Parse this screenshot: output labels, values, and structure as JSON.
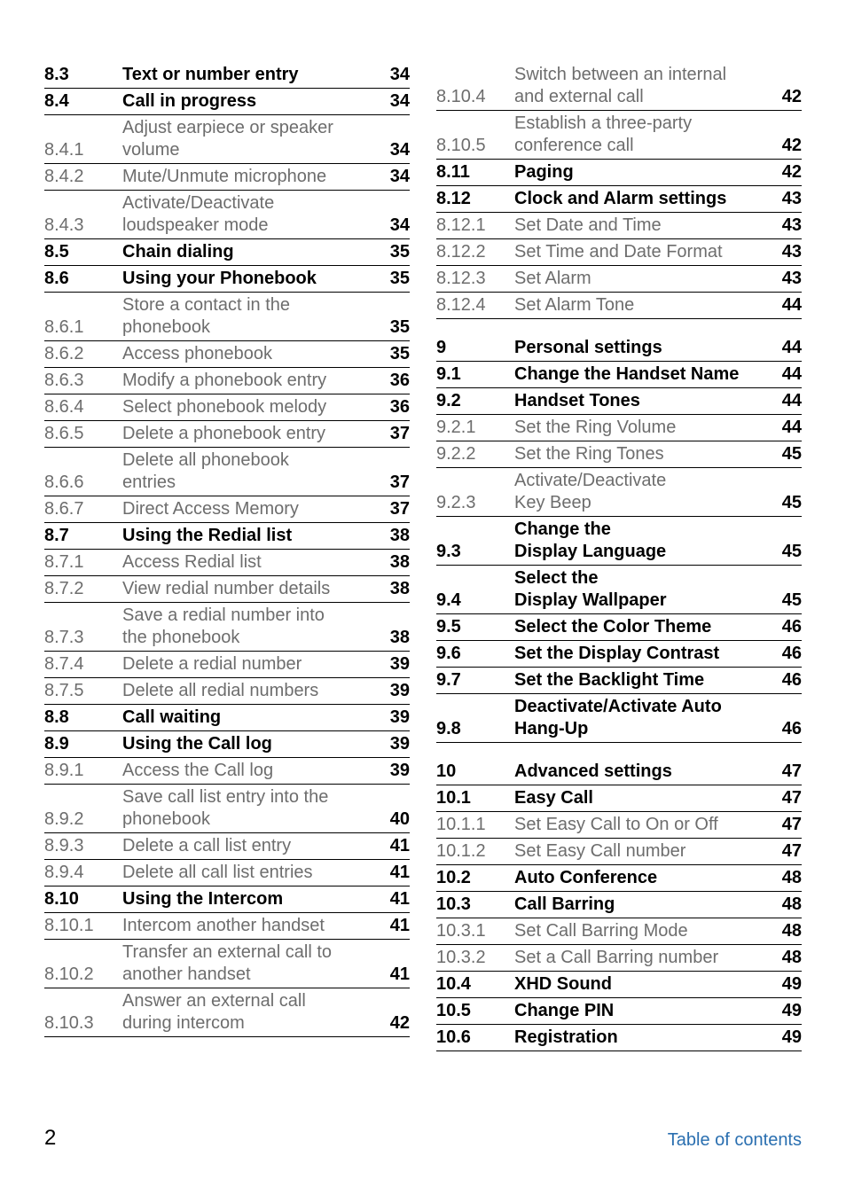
{
  "footer": {
    "page": "2",
    "label": "Table of contents"
  },
  "colors": {
    "link": "#2a6fb0",
    "muted": "#6d6d6d",
    "text": "#000000",
    "rule": "#000000"
  },
  "left": [
    {
      "num": "8.3",
      "title": "Text or number entry",
      "page": "34",
      "style": "semi"
    },
    {
      "num": "8.4",
      "title": "Call in progress",
      "page": "34",
      "style": "semi"
    },
    {
      "num": "8.4.1",
      "title": "Adjust earpiece or speaker volume",
      "page": "34",
      "style": "light",
      "multiline": true,
      "l1": "Adjust earpiece or speaker",
      "l2": "volume"
    },
    {
      "num": "8.4.2",
      "title": "Mute/Unmute microphone",
      "page": "34",
      "style": "light"
    },
    {
      "num": "8.4.3",
      "title": "Activate/Deactivate loudspeaker mode",
      "page": "34",
      "style": "light",
      "multiline": true,
      "l1": "Activate/Deactivate",
      "l2": "loudspeaker mode"
    },
    {
      "num": "8.5",
      "title": "Chain dialing",
      "page": "35",
      "style": "semi"
    },
    {
      "num": "8.6",
      "title": "Using your Phonebook",
      "page": "35",
      "style": "semi"
    },
    {
      "num": "8.6.1",
      "title": "Store a contact in the phonebook",
      "page": "35",
      "style": "light",
      "multiline": true,
      "l1": "Store a contact in the",
      "l2": "phonebook"
    },
    {
      "num": "8.6.2",
      "title": "Access phonebook",
      "page": "35",
      "style": "light"
    },
    {
      "num": "8.6.3",
      "title": "Modify a phonebook entry",
      "page": "36",
      "style": "light"
    },
    {
      "num": "8.6.4",
      "title": "Select phonebook melody",
      "page": "36",
      "style": "light"
    },
    {
      "num": "8.6.5",
      "title": "Delete a phonebook entry",
      "page": "37",
      "style": "light"
    },
    {
      "num": "8.6.6",
      "title": "Delete all phonebook entries",
      "page": "37",
      "style": "light",
      "multiline": true,
      "l1": "Delete all phonebook",
      "l2": "entries"
    },
    {
      "num": "8.6.7",
      "title": "Direct Access Memory",
      "page": "37",
      "style": "light"
    },
    {
      "num": "8.7",
      "title": "Using the Redial list",
      "page": "38",
      "style": "semi"
    },
    {
      "num": "8.7.1",
      "title": "Access Redial list",
      "page": "38",
      "style": "light"
    },
    {
      "num": "8.7.2",
      "title": "View redial number details",
      "page": "38",
      "style": "light"
    },
    {
      "num": "8.7.3",
      "title": "Save a redial number into the phonebook",
      "page": "38",
      "style": "light",
      "multiline": true,
      "l1": "Save a redial number into",
      "l2": "the phonebook"
    },
    {
      "num": "8.7.4",
      "title": "Delete a redial number",
      "page": "39",
      "style": "light"
    },
    {
      "num": "8.7.5",
      "title": "Delete all redial numbers",
      "page": "39",
      "style": "light"
    },
    {
      "num": "8.8",
      "title": "Call waiting",
      "page": "39",
      "style": "semi"
    },
    {
      "num": "8.9",
      "title": "Using the Call log",
      "page": "39",
      "style": "semi"
    },
    {
      "num": "8.9.1",
      "title": "Access the Call log",
      "page": "39",
      "style": "light"
    },
    {
      "num": "8.9.2",
      "title": "Save call list entry into the phonebook",
      "page": "40",
      "style": "light",
      "multiline": true,
      "l1": "Save call list entry into the",
      "l2": "phonebook"
    },
    {
      "num": "8.9.3",
      "title": "Delete a call list entry",
      "page": "41",
      "style": "light"
    },
    {
      "num": "8.9.4",
      "title": "Delete all call list entries",
      "page": "41",
      "style": "light"
    },
    {
      "num": "8.10",
      "title": "Using the Intercom",
      "page": "41",
      "style": "semi"
    },
    {
      "num": "8.10.1",
      "title": "Intercom another handset",
      "page": "41",
      "style": "light"
    },
    {
      "num": "8.10.2",
      "title": "Transfer an external call to another handset",
      "page": "41",
      "style": "light",
      "multiline": true,
      "l1": "Transfer an external call to",
      "l2": "another handset"
    },
    {
      "num": "8.10.3",
      "title": "Answer an external call during intercom",
      "page": "42",
      "style": "light",
      "multiline": true,
      "l1": "Answer an external call",
      "l2": "during intercom"
    }
  ],
  "right": [
    {
      "num": "8.10.4",
      "title": "Switch between an internal and external call",
      "page": "42",
      "style": "light",
      "multiline": true,
      "l1": "Switch between an internal",
      "l2": "and external call"
    },
    {
      "num": "8.10.5",
      "title": "Establish a three-party conference call",
      "page": "42",
      "style": "light",
      "multiline": true,
      "l1": "Establish a three-party",
      "l2": "conference call"
    },
    {
      "num": "8.11",
      "title": "Paging",
      "page": "42",
      "style": "semi"
    },
    {
      "num": "8.12",
      "title": "Clock and Alarm settings",
      "page": "43",
      "style": "semi"
    },
    {
      "num": "8.12.1",
      "title": "Set Date and Time",
      "page": "43",
      "style": "light"
    },
    {
      "num": "8.12.2",
      "title": "Set Time and Date Format",
      "page": "43",
      "style": "light"
    },
    {
      "num": "8.12.3",
      "title": "Set Alarm",
      "page": "43",
      "style": "light"
    },
    {
      "num": "8.12.4",
      "title": "Set Alarm Tone",
      "page": "44",
      "style": "light"
    },
    {
      "gap": true
    },
    {
      "num": "9",
      "title": "Personal settings",
      "page": "44",
      "style": "bold"
    },
    {
      "num": "9.1",
      "title": "Change the Handset Name",
      "page": "44",
      "style": "semi"
    },
    {
      "num": "9.2",
      "title": "Handset Tones",
      "page": "44",
      "style": "semi"
    },
    {
      "num": "9.2.1",
      "title": "Set the Ring Volume",
      "page": "44",
      "style": "light"
    },
    {
      "num": "9.2.2",
      "title": "Set the Ring Tones",
      "page": "45",
      "style": "light"
    },
    {
      "num": "9.2.3",
      "title": "Activate/Deactivate Key Beep",
      "page": "45",
      "style": "light",
      "multiline": true,
      "l1": "Activate/Deactivate",
      "l2": "Key Beep"
    },
    {
      "num": "9.3",
      "title": "Change the Display Language",
      "page": "45",
      "style": "semi",
      "multiline": true,
      "l1": "Change the",
      "l2": "Display Language"
    },
    {
      "num": "9.4",
      "title": "Select the Display Wallpaper",
      "page": "45",
      "style": "semi",
      "multiline": true,
      "l1": "Select the",
      "l2": "Display Wallpaper"
    },
    {
      "num": "9.5",
      "title": "Select the Color Theme",
      "page": "46",
      "style": "semi"
    },
    {
      "num": "9.6",
      "title": "Set the Display Contrast",
      "page": "46",
      "style": "semi"
    },
    {
      "num": "9.7",
      "title": "Set the Backlight Time",
      "page": "46",
      "style": "semi"
    },
    {
      "num": "9.8",
      "title": "Deactivate/Activate Auto Hang-Up",
      "page": "46",
      "style": "semi",
      "multiline": true,
      "l1": "Deactivate/Activate Auto",
      "l2": "Hang-Up"
    },
    {
      "gap": true
    },
    {
      "num": "10",
      "title": "Advanced settings",
      "page": "47",
      "style": "bold"
    },
    {
      "num": "10.1",
      "title": "Easy Call",
      "page": "47",
      "style": "semi"
    },
    {
      "num": "10.1.1",
      "title": "Set Easy Call to On or Off",
      "page": "47",
      "style": "light"
    },
    {
      "num": "10.1.2",
      "title": "Set Easy Call number",
      "page": "47",
      "style": "light"
    },
    {
      "num": "10.2",
      "title": "Auto Conference",
      "page": "48",
      "style": "semi"
    },
    {
      "num": "10.3",
      "title": "Call Barring",
      "page": "48",
      "style": "semi"
    },
    {
      "num": "10.3.1",
      "title": "Set Call Barring Mode",
      "page": "48",
      "style": "light"
    },
    {
      "num": "10.3.2",
      "title": "Set a Call Barring number",
      "page": "48",
      "style": "light"
    },
    {
      "num": "10.4",
      "title": "XHD Sound",
      "page": "49",
      "style": "semi"
    },
    {
      "num": "10.5",
      "title": "Change PIN",
      "page": "49",
      "style": "semi"
    },
    {
      "num": "10.6",
      "title": "Registration",
      "page": "49",
      "style": "semi"
    }
  ]
}
